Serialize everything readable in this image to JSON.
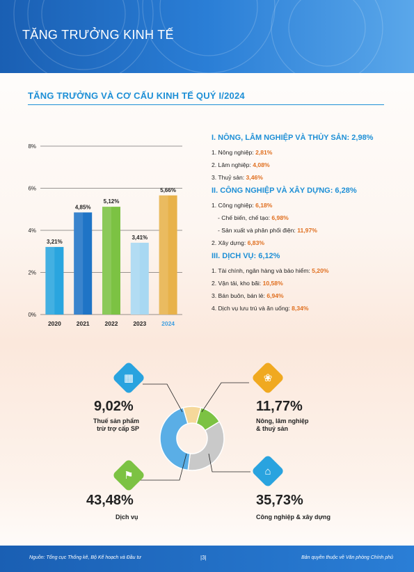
{
  "banner": {
    "title": "TĂNG TRƯỞNG KINH TẾ"
  },
  "section": {
    "title": "TĂNG TRƯỞNG VÀ CƠ CẤU KINH TẾ QUÝ I/2024"
  },
  "chart_data": {
    "type": "bar",
    "categories": [
      "2020",
      "2021",
      "2022",
      "2023",
      "2024"
    ],
    "values": [
      3.21,
      4.85,
      5.12,
      3.41,
      5.66
    ],
    "value_labels": [
      "3,21%",
      "4,85%",
      "5,12%",
      "3,41%",
      "5,66%"
    ],
    "ytick_labels": [
      "0%",
      "2%",
      "4%",
      "6%",
      "8%"
    ],
    "ylim": [
      0,
      8
    ],
    "colors": [
      "#2aa5df",
      "#1f74c6",
      "#7cc243",
      "#a8d8f2",
      "#e8b24a"
    ],
    "highlight_label_color": "#3d9ee0"
  },
  "groups": [
    {
      "head": "I. NÔNG, LÂM NGHIỆP VÀ THỦY SẢN: 2,98%",
      "items": [
        {
          "label": "1.   Nông nghiệp: ",
          "value": "2,81%"
        },
        {
          "label": "2.  Lâm nghiệp: ",
          "value": "4,08%"
        },
        {
          "label": "3.  Thuỷ sản: ",
          "value": "3,46%"
        }
      ]
    },
    {
      "head": "II. CÔNG NGHIỆP VÀ XÂY DỰNG: 6,28%",
      "items": [
        {
          "label": "1. Công nghiệp: ",
          "value": "6,18%"
        },
        {
          "label": "   -   Chế biến, chế tạo: ",
          "value": "6,98%"
        },
        {
          "label": "   -   Sản xuất và phân phối điện: ",
          "value": "11,97%"
        },
        {
          "label": "2. Xây dựng: ",
          "value": "6,83%"
        }
      ]
    },
    {
      "head": "III. DỊCH VỤ: 6,12%",
      "items": [
        {
          "label": "1. Tài chính, ngân hàng và bảo hiểm: ",
          "value": "5,20%"
        },
        {
          "label": "2. Vận tải, kho bãi: ",
          "value": "10,58%"
        },
        {
          "label": "3. Bán buôn, bán lẻ: ",
          "value": "6,94%"
        },
        {
          "label": "4. Dịch vụ lưu trú và ăn uống: ",
          "value": "8,34%"
        }
      ]
    }
  ],
  "structure": {
    "shares": [
      {
        "name": "Thuế sản phẩm trừ trợ cấp SP",
        "value": 9.02,
        "color": "#f5d89a"
      },
      {
        "name": "Nông, lâm nghiệp & thuỷ sản",
        "value": 11.77,
        "color": "#7cc243"
      },
      {
        "name": "Công nghiệp & xây dựng",
        "value": 35.73,
        "color": "#c9c9c9"
      },
      {
        "name": "Dịch vụ",
        "value": 43.48,
        "color": "#5aaee6"
      }
    ],
    "tax": {
      "pct": "9,02%",
      "line1": "Thuế sản phẩm",
      "line2": "trừ trợ cấp SP"
    },
    "agri": {
      "pct": "11,77%",
      "line1": "Nông, lâm nghiệp",
      "line2": "& thuỷ sản"
    },
    "service": {
      "pct": "43,48%",
      "line1": "Dịch vụ"
    },
    "industry": {
      "pct": "35,73%",
      "line1": "Công nghiệp & xây dựng"
    }
  },
  "footer": {
    "source": "Nguồn: Tổng cục Thống kê, Bộ Kế hoạch và Đầu tư",
    "page": "|3|",
    "copyright": "Bản quyền thuộc về Văn phòng Chính phủ"
  }
}
